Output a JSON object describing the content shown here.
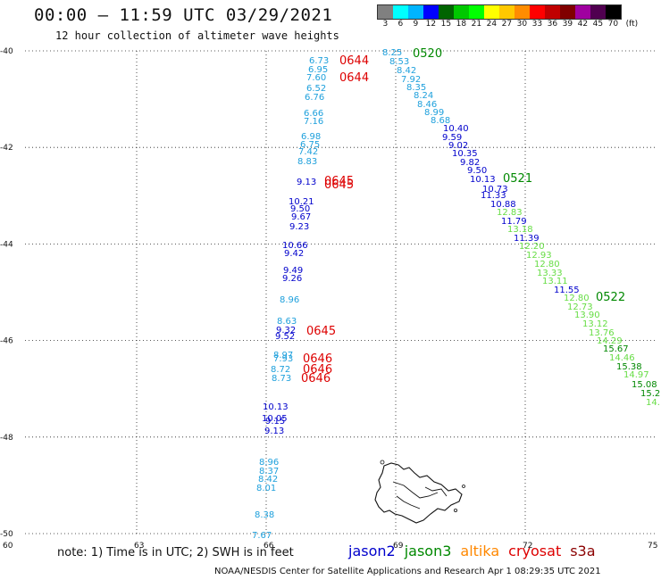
{
  "header": {
    "title": "00:00 – 11:59 UTC 03/29/2021",
    "subtitle": "12 hour collection of altimeter wave heights"
  },
  "legend": {
    "colors": [
      "#808080",
      "#00ffff",
      "#00b4ff",
      "#0000ff",
      "#006400",
      "#00c800",
      "#00ff00",
      "#ffff00",
      "#ffc800",
      "#ff8c00",
      "#ff0000",
      "#c00000",
      "#800000",
      "#a000a0",
      "#500050",
      "#000000"
    ],
    "labels": [
      "3",
      "6",
      "9",
      "12",
      "15",
      "18",
      "21",
      "24",
      "27",
      "30",
      "33",
      "36",
      "39",
      "42",
      "45",
      "70",
      "(ft)"
    ]
  },
  "note": "note: 1) Time is in UTC; 2) SWH is in feet",
  "satellites": [
    {
      "name": "jason2",
      "color": "#0000cc"
    },
    {
      "name": "jason3",
      "color": "#008800"
    },
    {
      "name": "altika",
      "color": "#ff8800"
    },
    {
      "name": "cryosat",
      "color": "#dd0000"
    },
    {
      "name": "s3a",
      "color": "#8b0000"
    }
  ],
  "footer": "NOAA/NESDIS Center for Satellite Applications and Research    Apr  1 08:29:35 UTC 2021",
  "map": {
    "lon_ticks": [
      60,
      63,
      66,
      69,
      72,
      75
    ],
    "lat_ticks": [
      -40,
      -42,
      -44,
      -46,
      -48,
      -50
    ],
    "lon_range": [
      60,
      75
    ],
    "lat_range": [
      -50,
      -40
    ]
  },
  "tracks": [
    {
      "id": "cryosat-0644",
      "time_labels": [
        "0644",
        "0644"
      ],
      "time_color": "#dd0000",
      "obs": [
        {
          "v": "6.73",
          "c": "#1ea0dc"
        },
        {
          "v": "6.95",
          "c": "#1ea0dc"
        },
        {
          "v": "7.60",
          "c": "#1ea0dc"
        },
        {
          "v": "6.52",
          "c": "#1ea0dc"
        },
        {
          "v": "6.76",
          "c": "#1ea0dc"
        },
        {
          "v": "6.66",
          "c": "#1ea0dc"
        },
        {
          "v": "7.16",
          "c": "#1ea0dc"
        },
        {
          "v": "6.98",
          "c": "#1ea0dc"
        },
        {
          "v": "6.75",
          "c": "#1ea0dc"
        },
        {
          "v": "7.42",
          "c": "#1ea0dc"
        },
        {
          "v": "8.83",
          "c": "#1ea0dc"
        }
      ]
    },
    {
      "id": "cryosat-0645a",
      "time_labels": [
        "0645",
        "0645"
      ],
      "time_color": "#dd0000",
      "obs": [
        {
          "v": "9.13",
          "c": "#0000cc"
        },
        {
          "v": "10.21",
          "c": "#0000cc"
        },
        {
          "v": "9.50",
          "c": "#0000cc"
        },
        {
          "v": "9.67",
          "c": "#0000cc"
        },
        {
          "v": "9.23",
          "c": "#0000cc"
        },
        {
          "v": "10.66",
          "c": "#0000cc"
        },
        {
          "v": "9.42",
          "c": "#0000cc"
        },
        {
          "v": "9.49",
          "c": "#0000cc"
        },
        {
          "v": "9.26",
          "c": "#0000cc"
        },
        {
          "v": "8.96",
          "c": "#1ea0dc"
        }
      ]
    },
    {
      "id": "cryosat-0645b",
      "time_labels": [
        "0645"
      ],
      "time_color": "#dd0000",
      "obs": [
        {
          "v": "8.63",
          "c": "#1ea0dc"
        },
        {
          "v": "9.32",
          "c": "#0000cc"
        },
        {
          "v": "9.52",
          "c": "#0000cc"
        }
      ]
    },
    {
      "id": "cryosat-0646",
      "time_labels": [
        "0646",
        "0646",
        "0646"
      ],
      "time_color": "#dd0000",
      "obs": [
        {
          "v": "8.97",
          "c": "#1ea0dc"
        },
        {
          "v": "7.93",
          "c": "#1ea0dc"
        },
        {
          "v": "8.72",
          "c": "#1ea0dc"
        },
        {
          "v": "8.73",
          "c": "#1ea0dc"
        },
        {
          "v": "10.13",
          "c": "#0000cc"
        },
        {
          "v": "10.05",
          "c": "#0000cc"
        },
        {
          "v": "9.15",
          "c": "#0000cc"
        },
        {
          "v": "9.13",
          "c": "#0000cc"
        },
        {
          "v": "8.96",
          "c": "#1ea0dc"
        },
        {
          "v": "8.37",
          "c": "#1ea0dc"
        },
        {
          "v": "8.42",
          "c": "#1ea0dc"
        },
        {
          "v": "8.01",
          "c": "#1ea0dc"
        },
        {
          "v": "8.38",
          "c": "#1ea0dc"
        },
        {
          "v": "7.67",
          "c": "#1ea0dc"
        }
      ]
    },
    {
      "id": "jason3-0520",
      "time_labels": [
        "0520"
      ],
      "time_color": "#008800",
      "obs": [
        {
          "v": "8.25",
          "c": "#1ea0dc"
        },
        {
          "v": "8.53",
          "c": "#1ea0dc"
        },
        {
          "v": "8.42",
          "c": "#1ea0dc"
        },
        {
          "v": "7.92",
          "c": "#1ea0dc"
        },
        {
          "v": "8.35",
          "c": "#1ea0dc"
        },
        {
          "v": "8.24",
          "c": "#1ea0dc"
        },
        {
          "v": "8.46",
          "c": "#1ea0dc"
        },
        {
          "v": "8.99",
          "c": "#1ea0dc"
        },
        {
          "v": "8.68",
          "c": "#1ea0dc"
        },
        {
          "v": "10.40",
          "c": "#0000cc"
        },
        {
          "v": "9.59",
          "c": "#0000cc"
        },
        {
          "v": "9.02",
          "c": "#0000cc"
        },
        {
          "v": "10.35",
          "c": "#0000cc"
        },
        {
          "v": "9.82",
          "c": "#0000cc"
        },
        {
          "v": "9.50",
          "c": "#0000cc"
        },
        {
          "v": "10.13",
          "c": "#0000cc"
        }
      ]
    },
    {
      "id": "jason3-0521",
      "time_labels": [
        "0521"
      ],
      "time_color": "#008800",
      "obs": [
        {
          "v": "10.73",
          "c": "#0000cc"
        },
        {
          "v": "11.33",
          "c": "#0000cc"
        },
        {
          "v": "10.88",
          "c": "#0000cc"
        },
        {
          "v": "12.83",
          "c": "#66dd44"
        },
        {
          "v": "11.79",
          "c": "#0000cc"
        },
        {
          "v": "13.18",
          "c": "#66dd44"
        },
        {
          "v": "11.39",
          "c": "#0000cc"
        },
        {
          "v": "12.20",
          "c": "#66dd44"
        },
        {
          "v": "12.93",
          "c": "#66dd44"
        },
        {
          "v": "12.80",
          "c": "#66dd44"
        },
        {
          "v": "13.33",
          "c": "#66dd44"
        },
        {
          "v": "13.11",
          "c": "#66dd44"
        },
        {
          "v": "11.55",
          "c": "#0000cc"
        }
      ]
    },
    {
      "id": "jason3-0522",
      "time_labels": [
        "0522"
      ],
      "time_color": "#008800",
      "obs": [
        {
          "v": "12.80",
          "c": "#66dd44"
        },
        {
          "v": "12.73",
          "c": "#66dd44"
        },
        {
          "v": "13.90",
          "c": "#66dd44"
        },
        {
          "v": "13.12",
          "c": "#66dd44"
        },
        {
          "v": "13.76",
          "c": "#66dd44"
        },
        {
          "v": "14.29",
          "c": "#66dd44"
        },
        {
          "v": "15.67",
          "c": "#008800"
        },
        {
          "v": "14.46",
          "c": "#66dd44"
        },
        {
          "v": "15.38",
          "c": "#008800"
        },
        {
          "v": "14.97",
          "c": "#66dd44"
        },
        {
          "v": "15.08",
          "c": "#008800"
        },
        {
          "v": "15.2",
          "c": "#008800"
        },
        {
          "v": "14.",
          "c": "#66dd44"
        }
      ]
    }
  ]
}
